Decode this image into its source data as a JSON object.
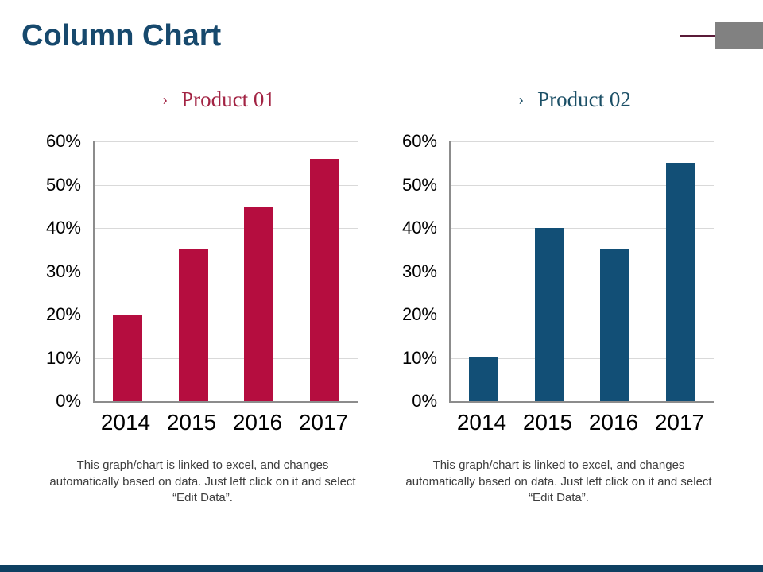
{
  "slide": {
    "title": "Column Chart",
    "title_color": "#17496d",
    "decor": {
      "corner_line_color": "#5a1a38",
      "corner_box_color": "#818181",
      "footer_bar_color": "#0e4062"
    }
  },
  "chart_data": [
    {
      "type": "bar",
      "title": "Product 01",
      "title_marker": "›",
      "title_color": "#a22343",
      "bar_color": "#b50d3f",
      "categories": [
        "2014",
        "2015",
        "2016",
        "2017"
      ],
      "values": [
        20,
        35,
        45,
        56
      ],
      "value_unit": "%",
      "ylim": [
        0,
        60
      ],
      "yticks": [
        "0%",
        "10%",
        "20%",
        "30%",
        "40%",
        "50%",
        "60%"
      ],
      "grid": "horizontal",
      "legend": "none",
      "footnote": "This graph/chart is linked to excel, and changes automatically based on data. Just left click on it and select “Edit Data”."
    },
    {
      "type": "bar",
      "title": "Product 02",
      "title_marker": "›",
      "title_color": "#1b4f66",
      "bar_color": "#124f76",
      "categories": [
        "2014",
        "2015",
        "2016",
        "2017"
      ],
      "values": [
        10,
        40,
        35,
        55
      ],
      "value_unit": "%",
      "ylim": [
        0,
        60
      ],
      "yticks": [
        "0%",
        "10%",
        "20%",
        "30%",
        "40%",
        "50%",
        "60%"
      ],
      "grid": "horizontal",
      "legend": "none",
      "footnote": "This graph/chart is linked to excel, and changes automatically based on data. Just left click on it and select “Edit Data”."
    }
  ]
}
